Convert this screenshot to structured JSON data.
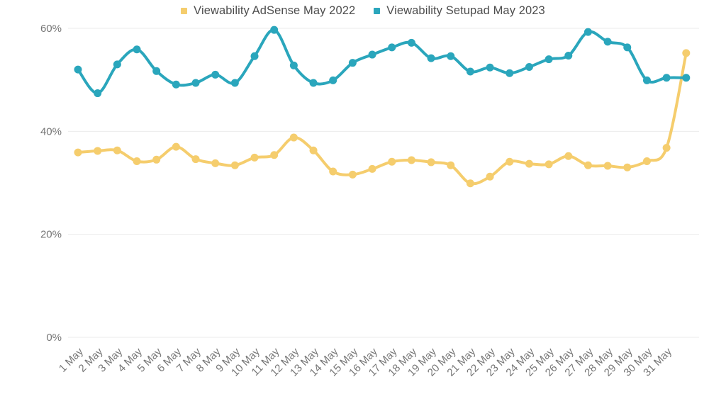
{
  "legend": {
    "position": "top-center"
  },
  "axis": {
    "grid_color": "#ebebeb",
    "tick_text_color": "#767676"
  },
  "chart_data": {
    "type": "line",
    "title": "",
    "xlabel": "",
    "ylabel": "",
    "ylim": [
      0,
      65
    ],
    "yticks": [
      0,
      20,
      40,
      60
    ],
    "ytick_labels": [
      "0%",
      "20%",
      "40%",
      "60%"
    ],
    "grid": "horizontal",
    "legend_position": "top",
    "marker": "circle",
    "categories": [
      "1 May",
      "2 May",
      "3 May",
      "4 May",
      "5 May",
      "6 May",
      "7 May",
      "8 May",
      "9 May",
      "10 May",
      "11 May",
      "12 May",
      "13 May",
      "14 May",
      "15 May",
      "16 May",
      "17 May",
      "18 May",
      "19 May",
      "20 May",
      "21 May",
      "22 May",
      "23 May",
      "24 May",
      "25 May",
      "26 May",
      "27 May",
      "28 May",
      "29 May",
      "30 May",
      "31 May",
      ""
    ],
    "series": [
      {
        "name": "Viewability AdSense May 2022",
        "color": "#f5cd6d",
        "values": [
          35.9,
          36.2,
          36.3,
          34.2,
          34.5,
          37.0,
          34.6,
          33.8,
          33.4,
          34.9,
          35.4,
          38.8,
          36.3,
          32.2,
          31.6,
          32.7,
          34.1,
          34.4,
          34.0,
          33.4,
          29.9,
          31.2,
          34.1,
          33.7,
          33.6,
          35.2,
          33.4,
          33.3,
          33.0,
          34.2,
          36.8,
          55.2
        ]
      },
      {
        "name": "Viewability Setupad May 2023",
        "color": "#2aa6bc",
        "values": [
          52.0,
          47.4,
          53.0,
          55.9,
          51.7,
          49.1,
          49.4,
          51.0,
          49.4,
          54.6,
          59.7,
          52.8,
          49.4,
          49.9,
          53.3,
          54.9,
          56.3,
          57.2,
          54.2,
          54.6,
          51.6,
          52.4,
          51.3,
          52.5,
          54.0,
          54.7,
          59.3,
          57.4,
          56.3,
          49.9,
          50.4,
          50.4
        ]
      }
    ]
  }
}
